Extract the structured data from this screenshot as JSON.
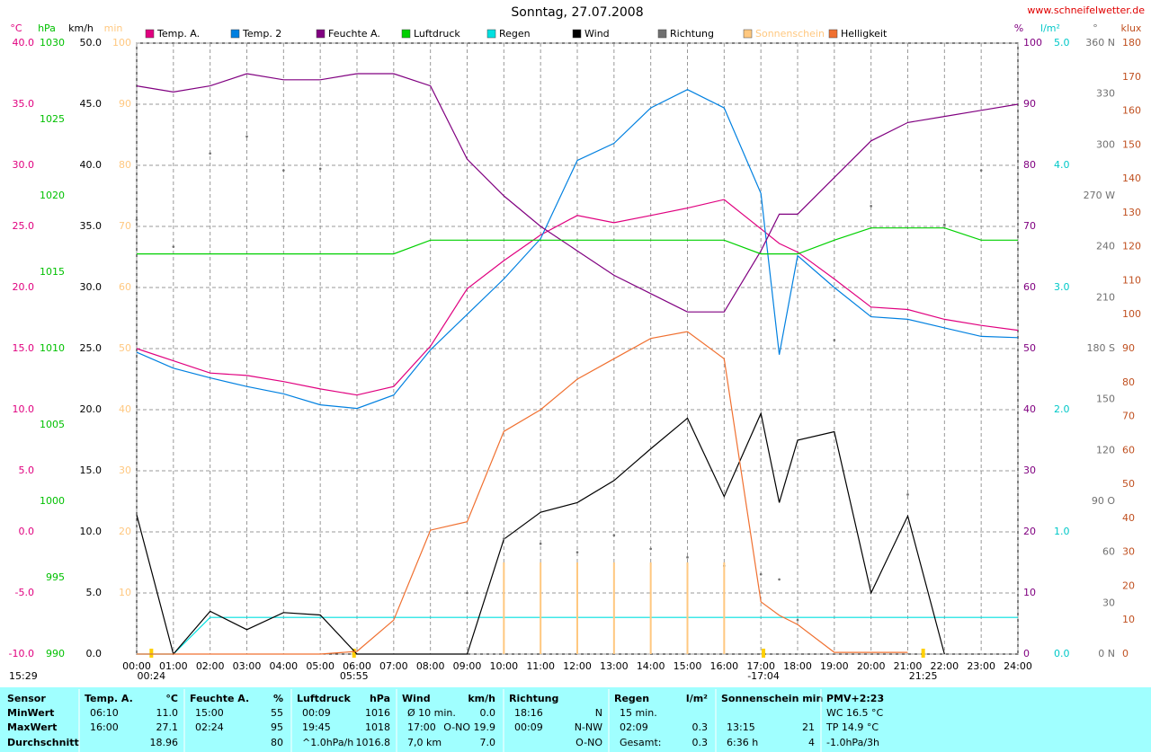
{
  "chart_data": {
    "type": "line",
    "title": "Sonntag, 27.07.2008",
    "source": "www.schneifelwetter.de",
    "grid": true,
    "xlim": [
      0,
      24
    ],
    "xticks": [
      {
        "value": 0,
        "label": "00:00"
      },
      {
        "value": 1,
        "label": "01:00"
      },
      {
        "value": 2,
        "label": "02:00"
      },
      {
        "value": 3,
        "label": "03:00"
      },
      {
        "value": 4,
        "label": "04:00"
      },
      {
        "value": 5,
        "label": "05:00"
      },
      {
        "value": 6,
        "label": "06:00"
      },
      {
        "value": 7,
        "label": "07:00"
      },
      {
        "value": 8,
        "label": "08:00"
      },
      {
        "value": 9,
        "label": "09:00"
      },
      {
        "value": 10,
        "label": "10:00"
      },
      {
        "value": 11,
        "label": "11:00"
      },
      {
        "value": 12,
        "label": "12:00"
      },
      {
        "value": 13,
        "label": "13:00"
      },
      {
        "value": 14,
        "label": "14:00"
      },
      {
        "value": 15,
        "label": "15:00"
      },
      {
        "value": 16,
        "label": "16:00"
      },
      {
        "value": 17,
        "label": "17:00"
      },
      {
        "value": 18,
        "label": "18:00"
      },
      {
        "value": 19,
        "label": "19:00"
      },
      {
        "value": 20,
        "label": "20:00"
      },
      {
        "value": 21,
        "label": "21:00"
      },
      {
        "value": 22,
        "label": "22:00"
      },
      {
        "value": 23,
        "label": "23:00"
      },
      {
        "value": 24,
        "label": "24:00"
      }
    ],
    "axes": [
      {
        "label": "°C",
        "color": "#e0007f",
        "side": "left",
        "ylim": [
          -10,
          40
        ],
        "yticks": [
          {
            "value": -10,
            "label": "-10.0"
          },
          {
            "value": -5,
            "label": "-5.0"
          },
          {
            "value": 0,
            "label": "0.0"
          },
          {
            "value": 5,
            "label": "5.0"
          },
          {
            "value": 10,
            "label": "10.0"
          },
          {
            "value": 15,
            "label": "15.0"
          },
          {
            "value": 20,
            "label": "20.0"
          },
          {
            "value": 25,
            "label": "25.0"
          },
          {
            "value": 30,
            "label": "30.0"
          },
          {
            "value": 35,
            "label": "35.0"
          },
          {
            "value": 40,
            "label": "40.0"
          }
        ]
      },
      {
        "label": "hPa",
        "color": "#00c000",
        "side": "left",
        "ylim": [
          990,
          1030
        ],
        "yticks": [
          990,
          995,
          1000,
          1005,
          1010,
          1015,
          1020,
          1025,
          1030
        ]
      },
      {
        "label": "km/h",
        "color": "#000000",
        "side": "left",
        "ylim": [
          0,
          50
        ],
        "yticks": [
          {
            "value": 0,
            "label": "0.0"
          },
          {
            "value": 5,
            "label": "5.0"
          },
          {
            "value": 10,
            "label": "10.0"
          },
          {
            "value": 15,
            "label": "15.0"
          },
          {
            "value": 20,
            "label": "20.0"
          },
          {
            "value": 25,
            "label": "25.0"
          },
          {
            "value": 30,
            "label": "30.0"
          },
          {
            "value": 35,
            "label": "35.0"
          },
          {
            "value": 40,
            "label": "40.0"
          },
          {
            "value": 45,
            "label": "45.0"
          },
          {
            "value": 50,
            "label": "50.0"
          }
        ]
      },
      {
        "label": "min",
        "color": "#ffc880",
        "side": "left",
        "ylim": [
          0,
          100
        ],
        "yticks": [
          10,
          20,
          30,
          40,
          50,
          60,
          70,
          80,
          90,
          100
        ]
      },
      {
        "label": "%",
        "color": "#800080",
        "side": "right",
        "ylim": [
          0,
          100
        ],
        "yticks": [
          0,
          10,
          20,
          30,
          40,
          50,
          60,
          70,
          80,
          90,
          100
        ]
      },
      {
        "label": "l/m²",
        "color": "#00c8c8",
        "side": "right",
        "ylim": [
          0,
          5
        ],
        "yticks": [
          {
            "value": 0,
            "label": "0.0"
          },
          {
            "value": 1,
            "label": "1.0"
          },
          {
            "value": 2,
            "label": "2.0"
          },
          {
            "value": 3,
            "label": "3.0"
          },
          {
            "value": 4,
            "label": "4.0"
          },
          {
            "value": 5,
            "label": "5.0"
          }
        ]
      },
      {
        "label": "°",
        "color": "#707070",
        "side": "right",
        "ylim": [
          0,
          360
        ],
        "yticks": [
          {
            "value": 0,
            "label": "0 N"
          },
          30,
          60,
          {
            "value": 90,
            "label": "90 O"
          },
          120,
          150,
          {
            "value": 180,
            "label": "180 S"
          },
          210,
          240,
          {
            "value": 270,
            "label": "270 W"
          },
          300,
          330,
          {
            "value": 360,
            "label": "360 N"
          }
        ]
      },
      {
        "label": "klux",
        "color": "#c05020",
        "side": "right",
        "ylim": [
          0,
          180
        ],
        "yticks": [
          0,
          10,
          20,
          30,
          40,
          50,
          60,
          70,
          80,
          90,
          100,
          110,
          120,
          130,
          140,
          150,
          160,
          170,
          180
        ]
      }
    ],
    "x": [
      0,
      1,
      2,
      3,
      4,
      5,
      6,
      7,
      8,
      9,
      10,
      11,
      12,
      13,
      14,
      15,
      16,
      17,
      17.5,
      18,
      19,
      20,
      21,
      22,
      23,
      24
    ],
    "series": [
      {
        "name": "Temp. A.",
        "color": "#e0007f",
        "axis": "°C",
        "type": "line",
        "values": [
          15.0,
          14.0,
          13.0,
          12.8,
          12.3,
          11.7,
          11.2,
          11.9,
          15.2,
          19.9,
          22.2,
          24.3,
          25.9,
          25.3,
          25.9,
          26.5,
          27.2,
          24.8,
          23.6,
          22.9,
          20.7,
          18.4,
          18.2,
          17.4,
          16.9,
          16.5
        ]
      },
      {
        "name": "Temp. 2",
        "color": "#0080e0",
        "axis": "°C",
        "type": "line",
        "values": [
          14.7,
          13.4,
          12.6,
          11.9,
          11.3,
          10.4,
          10.1,
          11.2,
          14.9,
          17.8,
          20.7,
          24.0,
          30.4,
          31.8,
          34.7,
          36.2,
          34.7,
          27.7,
          14.5,
          22.6,
          20.0,
          17.6,
          17.4,
          16.7,
          16.0,
          15.9
        ]
      },
      {
        "name": "Feuchte A.",
        "color": "#800080",
        "axis": "%",
        "type": "line",
        "values": [
          93,
          92,
          93,
          95,
          94,
          94,
          95,
          95,
          93,
          81,
          75,
          70,
          66,
          62,
          59,
          56,
          56,
          66,
          72,
          72,
          78,
          84,
          87,
          88,
          89,
          90
        ]
      },
      {
        "name": "Luftdruck",
        "color": "#00d000",
        "axis": "hPa",
        "type": "line",
        "values": [
          1016.2,
          1016.2,
          1016.2,
          1016.2,
          1016.2,
          1016.2,
          1016.2,
          1016.2,
          1017.1,
          1017.1,
          1017.1,
          1017.1,
          1017.1,
          1017.1,
          1017.1,
          1017.1,
          1017.1,
          1016.2,
          1016.2,
          1016.2,
          1017.1,
          1017.9,
          1017.9,
          1017.9,
          1017.1,
          1017.1
        ]
      },
      {
        "name": "Regen",
        "color": "#00e0e0",
        "axis": "l/m²",
        "type": "line",
        "values": [
          0,
          0,
          0.3,
          0.3,
          0.3,
          0.3,
          0.3,
          0.3,
          0.3,
          0.3,
          0.3,
          0.3,
          0.3,
          0.3,
          0.3,
          0.3,
          0.3,
          0.3,
          0.3,
          0.3,
          0.3,
          0.3,
          0.3,
          0.3,
          0.3,
          0.3
        ]
      },
      {
        "name": "Wind",
        "color": "#000000",
        "axis": "km/h",
        "type": "line",
        "values": [
          11.4,
          0,
          3.5,
          2,
          3.4,
          3.2,
          0,
          0,
          0,
          0,
          9.4,
          11.6,
          12.4,
          14.2,
          16.8,
          19.3,
          12.9,
          19.7,
          12.4,
          17.5,
          18.2,
          5,
          11.3,
          0,
          null,
          null
        ]
      },
      {
        "name": "Richtung",
        "color": "#707070",
        "axis": "°",
        "type": "scatter",
        "values": [
          256,
          240,
          295,
          305,
          285,
          286,
          null,
          null,
          null,
          36,
          68,
          65,
          60,
          70,
          62,
          57,
          52,
          47,
          44,
          20,
          185,
          264,
          94,
          253,
          285,
          null
        ]
      },
      {
        "name": "Sonnenschein",
        "color": "#ffc880",
        "axis": "min",
        "type": "bar",
        "values": [
          0,
          0,
          0,
          0,
          0,
          0,
          0,
          0,
          0,
          0,
          15,
          15,
          15,
          15,
          15,
          15,
          15,
          0,
          0,
          0,
          0,
          0,
          0,
          0,
          0,
          0
        ]
      },
      {
        "name": "Helligkeit",
        "color": "#f07030",
        "axis": "klux",
        "type": "line",
        "values": [
          0,
          0,
          0,
          0,
          0,
          0,
          0.8,
          10,
          36.5,
          39,
          65.6,
          72,
          81,
          87,
          93,
          95,
          87,
          15.4,
          11.4,
          8.7,
          0.5,
          0.5,
          0.5,
          null,
          null,
          null
        ]
      }
    ],
    "annotations": [
      {
        "text": "00:24",
        "x": 0.4
      },
      {
        "text": "05:55",
        "x": 5.92
      },
      {
        "text": "-17:04",
        "x": 17.07
      },
      {
        "text": "21:25",
        "x": 21.42
      }
    ],
    "corner_note": "15:29"
  },
  "table": {
    "row_labels": [
      "MinWert",
      "MaxWert",
      "Durchschnitt"
    ],
    "first_header": "Sensor",
    "groups": [
      {
        "header": "Temp. A.",
        "unit": "°C",
        "rows": [
          {
            "time": "06:10",
            "value": "11.0"
          },
          {
            "time": "16:00",
            "value": "27.1"
          },
          {
            "value": "18.96"
          }
        ]
      },
      {
        "header": "Feuchte A.",
        "unit": "%",
        "rows": [
          {
            "time": "15:00",
            "value": "55"
          },
          {
            "time": "02:24",
            "value": "95"
          },
          {
            "value": "80"
          }
        ]
      },
      {
        "header": "Luftdruck",
        "unit": "hPa",
        "rows": [
          {
            "time": "00:09",
            "value": "1016"
          },
          {
            "time": "19:45",
            "value": "1018"
          },
          {
            "time": "^1.0hPa/h",
            "value": "1016.8"
          }
        ]
      },
      {
        "header": "Wind",
        "unit": "km/h",
        "rows": [
          {
            "time": "Ø 10 min.",
            "value": "0.0"
          },
          {
            "time": "17:00",
            "value": "O-NO 19.9"
          },
          {
            "time": "7,0 km",
            "value": "7.0"
          }
        ]
      },
      {
        "header": "Richtung",
        "rows": [
          {
            "time": "18:16",
            "value": "N"
          },
          {
            "time": "00:09",
            "value": "N-NW"
          },
          {
            "value": "O-NO"
          }
        ]
      },
      {
        "header": "Regen",
        "unit": "l/m²",
        "rows": [
          {
            "time": "15 min."
          },
          {
            "time": "02:09",
            "value": "0.3"
          },
          {
            "time": "Gesamt:",
            "value": "0.3"
          }
        ]
      },
      {
        "header": "Sonnenschein min",
        "rows": [
          {},
          {
            "time": "13:15",
            "value": "21"
          },
          {
            "time": "6:36 h",
            "value": "4"
          }
        ]
      },
      {
        "header": "PMV+2:23",
        "rows": [
          {
            "time": "WC 16.5 °C"
          },
          {
            "time": "TP 14.9 °C"
          },
          {
            "time": "-1.0hPa/3h"
          }
        ]
      }
    ]
  }
}
